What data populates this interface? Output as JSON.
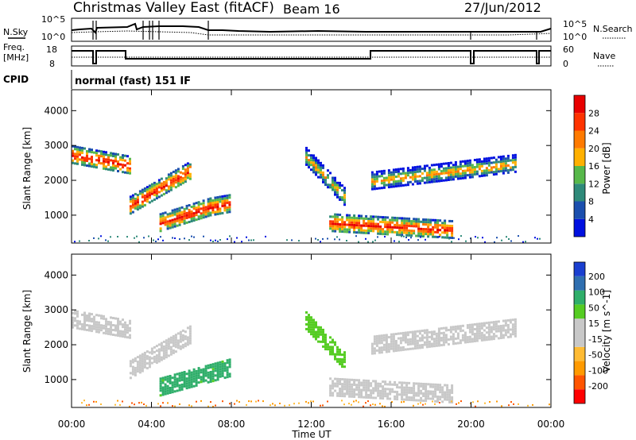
{
  "header": {
    "title": "Christmas Valley East (fitACF)",
    "beam": "Beam 16",
    "date": "27/Jun/2012"
  },
  "panels": {
    "sky": {
      "left_label": "N.Sky",
      "right_label": "N.Search",
      "left_ticks": [
        "10^5",
        "10^0"
      ],
      "right_ticks": [
        "10^5",
        "10^0"
      ]
    },
    "freq": {
      "left_label_1": "Freq.",
      "left_label_2": "[MHz]",
      "right_label": "Nave",
      "left_ticks": [
        "18",
        "8"
      ],
      "right_ticks": [
        "60",
        "0"
      ]
    },
    "cpid": {
      "label": "CPID",
      "text": "normal (fast) 151 IF"
    }
  },
  "colors": {
    "power": [
      "#0010e0",
      "#1b4fae",
      "#2f8a7a",
      "#57b84a",
      "#ffb000",
      "#ff7a00",
      "#ff3300",
      "#e80000"
    ],
    "velocity": [
      "#ff0000",
      "#ff5500",
      "#ff9a00",
      "#ffbb33",
      "#c8c8c8",
      "#c8c8c8",
      "#55cc22",
      "#2fae6a",
      "#2f6fb0",
      "#1a3fd0"
    ]
  },
  "chart_data": [
    {
      "type": "heatmap",
      "panel": "power",
      "xlabel": "",
      "ylabel": "Slant Range [km]",
      "xlim": [
        0,
        24
      ],
      "ylim": [
        200,
        4600
      ],
      "y_ticks": [
        "1000",
        "2000",
        "3000",
        "4000"
      ],
      "colorbar": {
        "label": "Power [dB]",
        "ticks": [
          "4",
          "8",
          "12",
          "16",
          "20",
          "24",
          "28"
        ]
      },
      "echo_bands": [
        {
          "t_start": 0.0,
          "t_end": 2.9,
          "center_km_start": 2750,
          "center_km_end": 2450,
          "intensity": "high"
        },
        {
          "t_start": 2.9,
          "t_end": 5.9,
          "center_km_start": 1300,
          "center_km_end": 2300,
          "intensity": "high"
        },
        {
          "t_start": 4.4,
          "t_end": 6.9,
          "center_km_start": 800,
          "center_km_end": 1250,
          "intensity": "high"
        },
        {
          "t_start": 6.9,
          "t_end": 7.9,
          "center_km_start": 1250,
          "center_km_end": 1350,
          "intensity": "high"
        },
        {
          "t_start": 11.7,
          "t_end": 13.7,
          "center_km_start": 2700,
          "center_km_end": 1500,
          "intensity": "medium"
        },
        {
          "t_start": 12.9,
          "t_end": 19.0,
          "center_km_start": 800,
          "center_km_end": 600,
          "intensity": "high"
        },
        {
          "t_start": 15.0,
          "t_end": 22.2,
          "center_km_start": 2000,
          "center_km_end": 2500,
          "intensity": "medium"
        }
      ]
    },
    {
      "type": "heatmap",
      "panel": "velocity",
      "xlabel": "Time UT",
      "ylabel": "Slant Range [km]",
      "xlim": [
        0,
        24
      ],
      "ylim": [
        200,
        4600
      ],
      "x_ticks": [
        "00:00",
        "04:00",
        "08:00",
        "12:00",
        "16:00",
        "20:00",
        "00:00"
      ],
      "y_ticks": [
        "1000",
        "2000",
        "3000",
        "4000"
      ],
      "colorbar": {
        "label": "Velocity [m s^-1]",
        "ticks": [
          "200",
          "100",
          "50",
          "15",
          "-15",
          "-50",
          "-100",
          "-200"
        ]
      },
      "echo_bands": [
        {
          "t_start": 0.0,
          "t_end": 2.9,
          "center_km_start": 2750,
          "center_km_end": 2450,
          "velocity": 0
        },
        {
          "t_start": 2.9,
          "t_end": 5.9,
          "center_km_start": 1300,
          "center_km_end": 2300,
          "velocity": 0
        },
        {
          "t_start": 4.4,
          "t_end": 7.9,
          "center_km_start": 800,
          "center_km_end": 1350,
          "velocity": 60
        },
        {
          "t_start": 11.7,
          "t_end": 13.7,
          "center_km_start": 2700,
          "center_km_end": 1500,
          "velocity": 30
        },
        {
          "t_start": 12.9,
          "t_end": 19.0,
          "center_km_start": 800,
          "center_km_end": 600,
          "velocity": 0
        },
        {
          "t_start": 15.0,
          "t_end": 22.2,
          "center_km_start": 2000,
          "center_km_end": 2500,
          "velocity": 0
        }
      ]
    }
  ]
}
